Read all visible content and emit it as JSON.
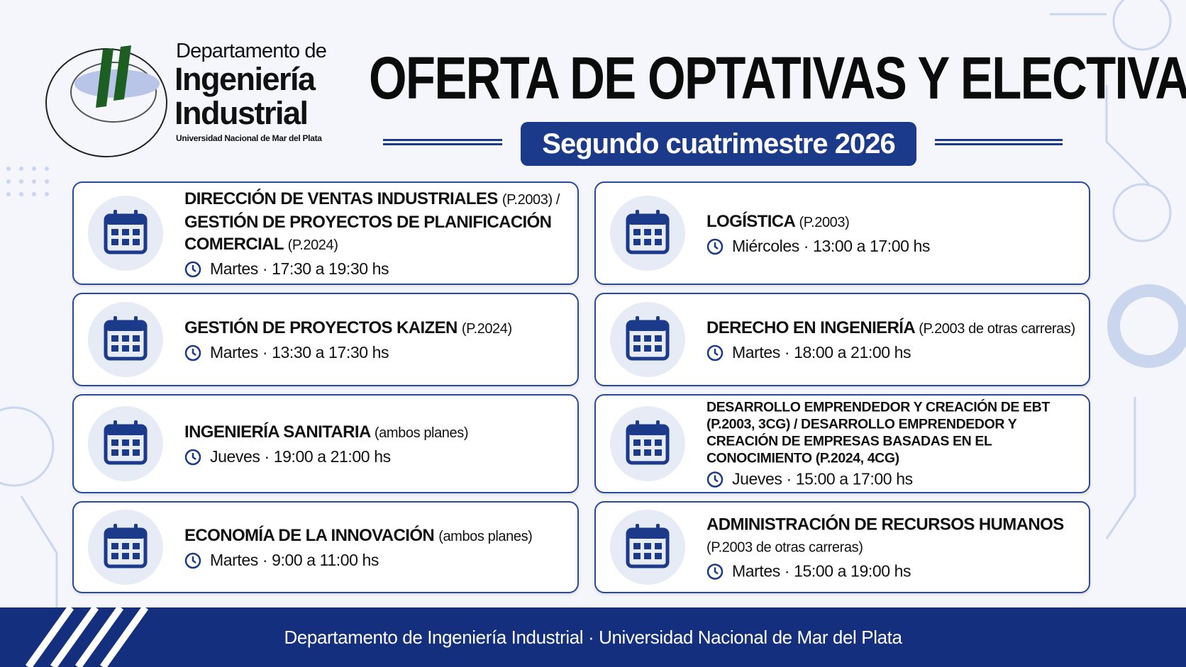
{
  "logo": {
    "line1": "Departamento de",
    "line2": "Ingeniería",
    "line3": "Industrial",
    "line4": "Universidad Nacional de Mar del Plata"
  },
  "title": "OFERTA DE OPTATIVAS Y ELECTIVAS",
  "subtitle": "Segundo cuatrimestre 2026",
  "courses": [
    {
      "title": [
        [
          "DIRECCIÓN DE VENTAS INDUSTRIALES",
          "(P.2003) /"
        ],
        [
          "GESTIÓN DE PROYECTOS DE PLANIFICACIÓN COMERCIAL",
          "(P.2024)"
        ]
      ],
      "schedule": "Martes · 17:30 a 19:30 hs"
    },
    {
      "title": [
        [
          "LOGÍSTICA",
          "(P.2003)"
        ]
      ],
      "schedule": "Miércoles · 13:00 a 17:00 hs"
    },
    {
      "title": [
        [
          "GESTIÓN DE PROYECTOS KAIZEN",
          "(P.2024)"
        ]
      ],
      "schedule": "Martes · 13:30 a 17:30 hs"
    },
    {
      "title": [
        [
          "DERECHO EN INGENIERÍA",
          "(P.2003 de otras carreras)"
        ]
      ],
      "schedule": "Martes · 18:00 a 21:00 hs"
    },
    {
      "title": [
        [
          "INGENIERÍA SANITARIA",
          "(ambos planes)"
        ]
      ],
      "schedule": "Jueves · 19:00 a 21:00 hs"
    },
    {
      "title": [
        [
          "DESARROLLO EMPRENDEDOR Y CREACIÓN DE EBT (P.2003, 3CG) / DESARROLLO EMPRENDEDOR Y CREACIÓN DE EMPRESAS BASADAS EN EL CONOCIMIENTO (P.2024, 4CG)"
        ]
      ],
      "schedule": "Jueves · 15:00 a 17:00 hs",
      "small": true
    },
    {
      "title": [
        [
          "ECONOMÍA DE LA INNOVACIÓN",
          "(ambos planes)"
        ]
      ],
      "schedule": "Martes · 9:00 a 11:00 hs"
    },
    {
      "title": [
        [
          "ADMINISTRACIÓN DE RECURSOS HUMANOS"
        ],
        [
          "(P.2003 de otras carreras)"
        ]
      ],
      "schedule": "Martes · 15:00 a 19:00 hs",
      "breakNote": true
    }
  ],
  "footer": "Departamento de Ingeniería Industrial · Universidad Nacional de Mar del Plata"
}
